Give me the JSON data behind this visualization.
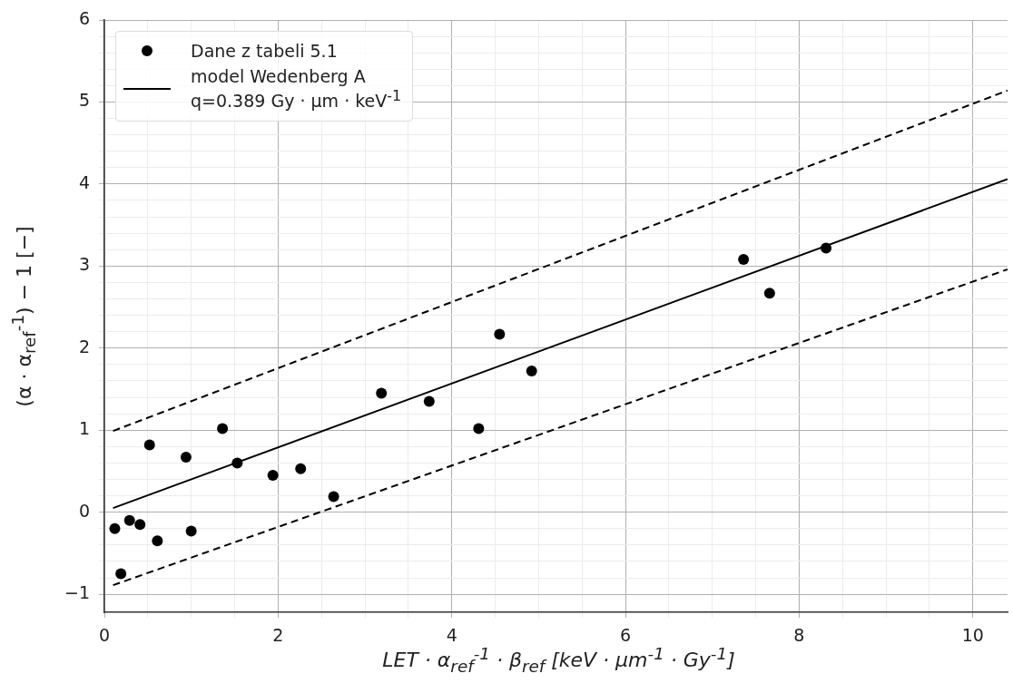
{
  "chart_data": {
    "type": "scatter",
    "xlabel": "LET · α$_{ref}$$^{-1}$ · β$_{ref}$ [keV · μm$^{-1}$ · Gy$^{-1}$]",
    "ylabel": "(α · α$_{ref}$$^{-1}$) − 1 [−]",
    "xlim": [
      0,
      10.4
    ],
    "ylim": [
      -1.22,
      6
    ],
    "xticks": [
      0,
      {
        "value": 0.5,
        "label": null
      },
      2,
      {
        "value": 1,
        "label": null
      },
      {
        "value": 1.5,
        "label": null
      },
      {
        "value": 2.5,
        "label": null
      },
      {
        "value": 3,
        "label": null
      },
      {
        "value": 3.5,
        "label": null
      },
      4,
      {
        "value": 4.5,
        "label": null
      },
      {
        "value": 5,
        "label": null
      },
      {
        "value": 5.5,
        "label": null
      },
      6,
      {
        "value": 6.5,
        "label": null
      },
      {
        "value": 7,
        "label": null
      },
      {
        "value": 7.5,
        "label": null
      },
      8,
      {
        "value": 8.5,
        "label": null
      },
      {
        "value": 9,
        "label": null
      },
      {
        "value": 9.5,
        "label": null
      },
      10
    ],
    "yticks": [
      -1,
      {
        "value": -0.8,
        "label": null
      },
      {
        "value": -0.6,
        "label": null
      },
      {
        "value": -0.4,
        "label": null
      },
      {
        "value": -0.2,
        "label": null
      },
      0,
      {
        "value": 0.2,
        "label": null
      },
      {
        "value": 0.4,
        "label": null
      },
      {
        "value": 0.6,
        "label": null
      },
      {
        "value": 0.8,
        "label": null
      },
      1,
      {
        "value": 1.2,
        "label": null
      },
      {
        "value": 1.4,
        "label": null
      },
      {
        "value": 1.6,
        "label": null
      },
      {
        "value": 1.8,
        "label": null
      },
      2,
      {
        "value": 2.2,
        "label": null
      },
      {
        "value": 2.4,
        "label": null
      },
      {
        "value": 2.6,
        "label": null
      },
      {
        "value": 2.8,
        "label": null
      },
      3,
      {
        "value": 3.2,
        "label": null
      },
      {
        "value": 3.4,
        "label": null
      },
      {
        "value": 3.6,
        "label": null
      },
      {
        "value": 3.8,
        "label": null
      },
      4,
      {
        "value": 4.2,
        "label": null
      },
      {
        "value": 4.4,
        "label": null
      },
      {
        "value": 4.6,
        "label": null
      },
      {
        "value": 4.8,
        "label": null
      },
      5,
      {
        "value": 5.2,
        "label": null
      },
      {
        "value": 5.4,
        "label": null
      },
      {
        "value": 5.6,
        "label": null
      },
      {
        "value": 5.8,
        "label": null
      },
      6
    ],
    "grid": true,
    "legend": "top left",
    "marker": "circle",
    "series": [
      {
        "name": "Dane z tabeli 5.1",
        "type": "scatter",
        "color": "#000000",
        "x": [
          0.12,
          0.19,
          0.29,
          0.41,
          0.52,
          0.61,
          0.94,
          1.0,
          1.36,
          1.53,
          1.94,
          2.26,
          2.64,
          3.19,
          3.74,
          4.31,
          4.55,
          4.92,
          7.36,
          7.66,
          8.31
        ],
        "values": [
          -0.2,
          -0.75,
          -0.1,
          -0.15,
          0.82,
          -0.35,
          0.67,
          -0.23,
          1.02,
          0.6,
          0.45,
          0.53,
          0.19,
          1.45,
          1.35,
          1.02,
          2.17,
          1.72,
          3.08,
          2.67,
          3.22
        ]
      },
      {
        "name": "model Wedenberg A\nq=0.389 Gy · μm · keV$^{-1}$",
        "type": "line",
        "color": "#000000",
        "line_style": "solid",
        "marker": "none",
        "x": [
          0.1,
          10.4
        ],
        "values": [
          0.05,
          4.06
        ]
      },
      {
        "type": "line",
        "color": "#000000",
        "line_style": "dashed",
        "marker": "none",
        "x": [
          0.1,
          10.4
        ],
        "values": [
          0.99,
          5.14
        ]
      },
      {
        "type": "line",
        "color": "#000000",
        "line_style": "dashed",
        "marker": "none",
        "x": [
          0.1,
          10.4
        ],
        "values": [
          -0.89,
          2.96
        ]
      }
    ]
  }
}
